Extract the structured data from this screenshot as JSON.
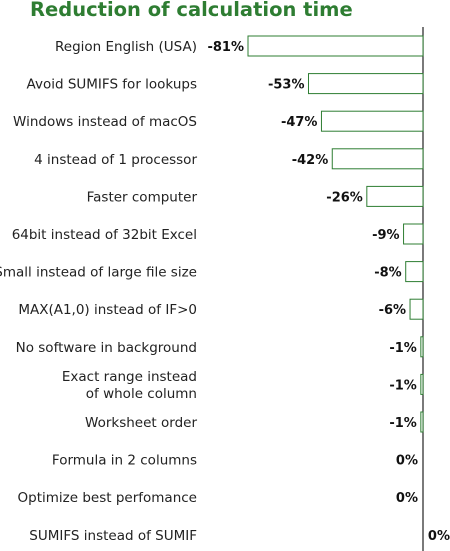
{
  "chart_data": {
    "type": "bar",
    "orientation": "horizontal",
    "title": "Reduction of calculation time",
    "categories": [
      "Region English (USA)",
      "Avoid SUMIFS for lookups",
      "Windows instead of macOS",
      "4 instead of 1 processor",
      "Faster computer",
      "64bit instead of 32bit Excel",
      "Small instead of large file size",
      "MAX(A1,0) instead of IF>0",
      "No software in background",
      "Exact range instead\nof whole column",
      "Worksheet order",
      "Formula in 2 columns",
      "Optimize best perfomance",
      "SUMIFS instead of SUMIF"
    ],
    "values": [
      -81,
      -53,
      -47,
      -42,
      -26,
      -9,
      -8,
      -6,
      -1,
      -1,
      -1,
      0,
      0,
      0
    ],
    "value_labels": [
      "-81%",
      "-53%",
      "-47%",
      "-42%",
      "-26%",
      "-9%",
      "-8%",
      "-6%",
      "-1%",
      "-1%",
      "-1%",
      "0%",
      "0%",
      "0%"
    ],
    "xlabel": "",
    "ylabel": "",
    "xlim": [
      -100,
      0
    ],
    "grid": false,
    "legend": "none",
    "bar_fill": "#ffffff",
    "bar_stroke": "#2e7d32",
    "axis_color": "#333333",
    "title_color": "#2e7d32"
  }
}
